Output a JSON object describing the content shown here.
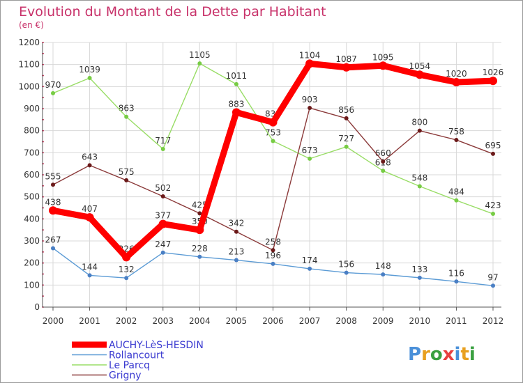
{
  "title": "Evolution du Montant de la Dette par Habitant",
  "subtitle": "(en €)",
  "logo": {
    "text": "Proxiti",
    "letter_colors": [
      "#4a90d9",
      "#e8a020",
      "#3aa040",
      "#e84040",
      "#4a90d9",
      "#e8a020",
      "#3aa040"
    ]
  },
  "chart_data": {
    "type": "line",
    "x": [
      "2000",
      "2001",
      "2002",
      "2003",
      "2004",
      "2005",
      "2006",
      "2007",
      "2008",
      "2009",
      "2010",
      "2011",
      "2012"
    ],
    "ylim": [
      0,
      1200
    ],
    "yticks": [
      "0",
      "100",
      "200",
      "300",
      "400",
      "500",
      "600",
      "700",
      "800",
      "900",
      "1000",
      "1100",
      "1200"
    ],
    "grid": true,
    "legend_position": "bottom-left",
    "series": [
      {
        "name": "Rollancourt",
        "color": "#5b9bd5",
        "marker": "#4a7fc4",
        "values": [
          267,
          144,
          132,
          247,
          228,
          213,
          196,
          174,
          156,
          148,
          133,
          116,
          97
        ],
        "labels": [
          "267",
          "144",
          "132",
          "247",
          "228",
          "213",
          "196",
          "174",
          "156",
          "148",
          "133",
          "116",
          "97"
        ]
      },
      {
        "name": "Le Parcq",
        "color": "#99dd66",
        "marker": "#77cc44",
        "values": [
          970,
          1039,
          863,
          717,
          1105,
          1011,
          753,
          673,
          727,
          618,
          548,
          484,
          423
        ],
        "labels": [
          "970",
          "1039",
          "863",
          "717",
          "1105",
          "1011",
          "753",
          "673",
          "727",
          "618",
          "548",
          "484",
          "423"
        ]
      },
      {
        "name": "Grigny",
        "color": "#8b3a3a",
        "marker": "#6b1a1a",
        "values": [
          555,
          643,
          575,
          502,
          425,
          342,
          258,
          903,
          856,
          660,
          800,
          758,
          695
        ],
        "labels": [
          "555",
          "643",
          "575",
          "502",
          "425",
          "342",
          "258",
          "903",
          "856",
          "660",
          "800",
          "758",
          "695"
        ]
      },
      {
        "name": "AUCHY-LèS-HESDIN",
        "color": "#ff0000",
        "marker": "#ff0000",
        "values": [
          438,
          407,
          226,
          377,
          350,
          883,
          838,
          1104,
          1087,
          1095,
          1054,
          1020,
          1026
        ],
        "labels": [
          "438",
          "407",
          "226",
          "377",
          "350",
          "883",
          "838",
          "1104",
          "1087",
          "1095",
          "1054",
          "1020",
          "1026"
        ]
      }
    ],
    "legend": [
      {
        "label": "AUCHY-LèS-HESDIN",
        "color": "#ff0000"
      },
      {
        "label": "Rollancourt",
        "color": "#5b9bd5"
      },
      {
        "label": "Le Parcq",
        "color": "#99dd66"
      },
      {
        "label": "Grigny",
        "color": "#8b3a3a"
      }
    ]
  }
}
